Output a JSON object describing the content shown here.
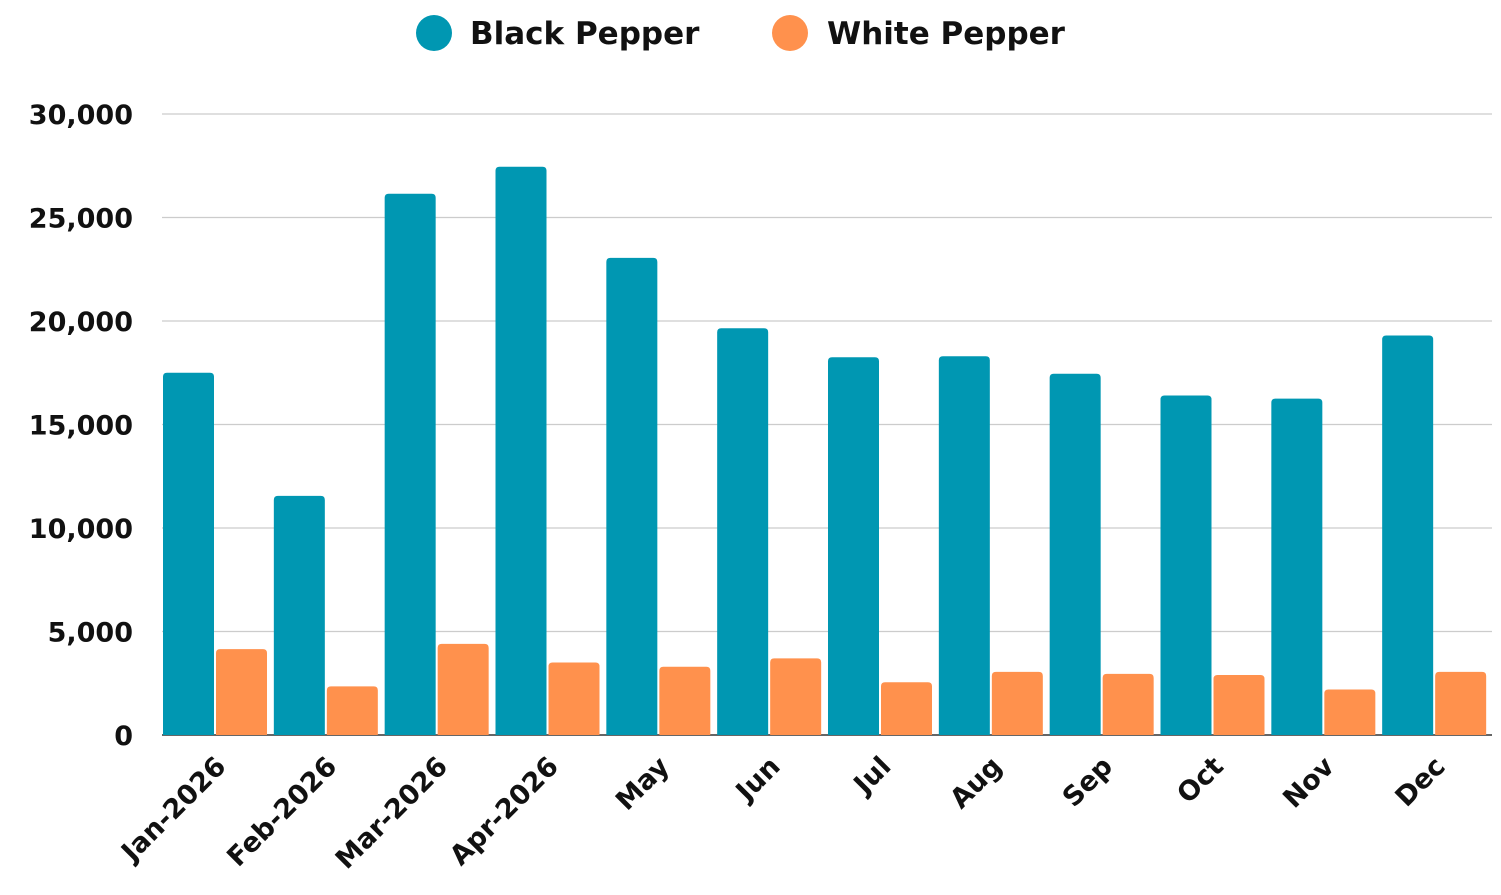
{
  "chart_data": {
    "type": "bar",
    "categories": [
      "Jan-2026",
      "Feb-2026",
      "Mar-2026",
      "Apr-2026",
      "May",
      "Jun",
      "Jul",
      "Aug",
      "Sep",
      "Oct",
      "Nov",
      "Dec"
    ],
    "series": [
      {
        "name": "Black Pepper",
        "color": "#0097b2",
        "values": [
          17500,
          11550,
          26150,
          27450,
          23050,
          19650,
          18250,
          18300,
          17450,
          16400,
          16250,
          19300
        ]
      },
      {
        "name": "White Pepper",
        "color": "#ff914d",
        "values": [
          4150,
          2350,
          4400,
          3500,
          3300,
          3700,
          2550,
          3050,
          2950,
          2900,
          2200,
          3050
        ]
      }
    ],
    "ylim": [
      0,
      30000
    ],
    "yticks": [
      "0",
      "5,000",
      "10,000",
      "15,000",
      "20,000",
      "25,000",
      "30,000"
    ],
    "grid": true,
    "legend_position": "top"
  }
}
